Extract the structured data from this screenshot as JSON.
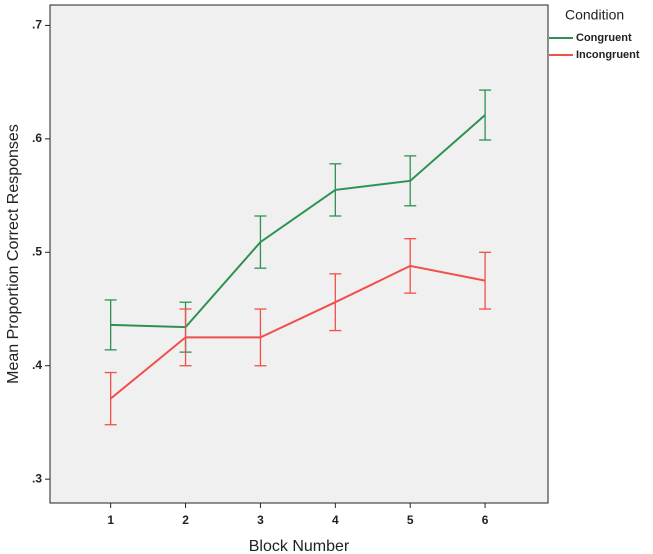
{
  "chart_data": {
    "type": "line",
    "x_label": "Block Number",
    "y_label": "Mean Proportion Correct Responses",
    "legend_title": "Condition",
    "legend": "right",
    "x": [
      1,
      2,
      3,
      4,
      5,
      6
    ],
    "xlim": [
      0.19,
      6.84
    ],
    "xticks": [
      1,
      2,
      3,
      4,
      5,
      6
    ],
    "ylim": [
      0.279,
      0.718
    ],
    "yticks": [
      {
        "value": 0.3,
        "label": ".3"
      },
      {
        "value": 0.4,
        "label": ".4"
      },
      {
        "value": 0.5,
        "label": ".5"
      },
      {
        "value": 0.6,
        "label": ".6"
      },
      {
        "value": 0.7,
        "label": ".7"
      }
    ],
    "series": [
      {
        "name": "Congruent",
        "color": "#2e9152",
        "values": [
          0.436,
          0.434,
          0.509,
          0.555,
          0.563,
          0.621
        ],
        "errors": [
          0.022,
          0.022,
          0.023,
          0.023,
          0.022,
          0.022
        ]
      },
      {
        "name": "Incongruent",
        "color": "#f0504a",
        "values": [
          0.371,
          0.425,
          0.425,
          0.456,
          0.488,
          0.475
        ],
        "errors": [
          0.023,
          0.025,
          0.025,
          0.025,
          0.024,
          0.025
        ]
      }
    ]
  }
}
